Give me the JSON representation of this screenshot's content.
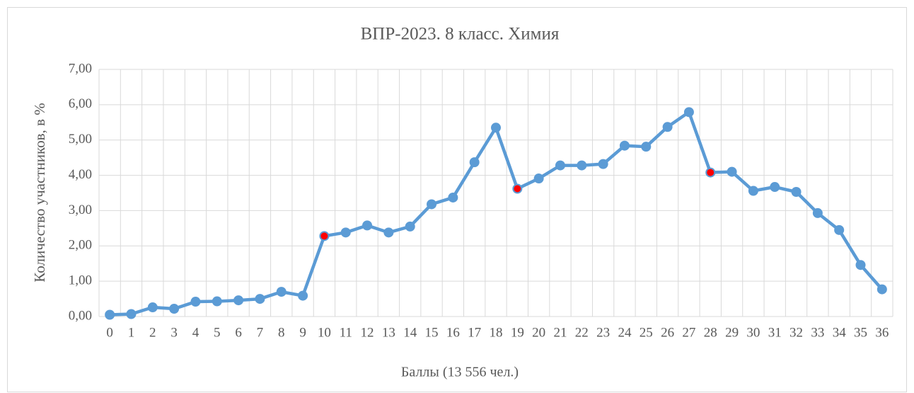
{
  "chart_data": {
    "type": "line",
    "title": "ВПР-2023. 8 класс. Химия",
    "x_label": "Баллы (13 556 чел.)",
    "y_label": "Количество участников, в %",
    "categories": [
      "0",
      "1",
      "2",
      "3",
      "4",
      "5",
      "6",
      "7",
      "8",
      "9",
      "10",
      "11",
      "12",
      "13",
      "14",
      "15",
      "16",
      "17",
      "18",
      "19",
      "20",
      "21",
      "22",
      "23",
      "24",
      "25",
      "26",
      "27",
      "28",
      "29",
      "30",
      "31",
      "32",
      "33",
      "34",
      "35",
      "36"
    ],
    "series": [
      {
        "color": "#5b9bd5",
        "values": [
          0.05,
          0.07,
          0.26,
          0.22,
          0.42,
          0.43,
          0.46,
          0.5,
          0.7,
          0.59,
          2.28,
          2.38,
          2.58,
          2.38,
          2.55,
          3.18,
          3.37,
          4.37,
          5.35,
          3.62,
          3.91,
          4.28,
          4.28,
          4.32,
          4.84,
          4.81,
          5.37,
          5.79,
          4.08,
          4.1,
          3.56,
          3.67,
          3.53,
          2.93,
          2.45,
          1.46,
          0.77
        ]
      }
    ],
    "highlight_color": "#ff0000",
    "highlight_categories": [
      "10",
      "19",
      "28"
    ],
    "ylim": [
      0,
      7
    ],
    "yticks": [
      {
        "value": 0,
        "label": "0,00"
      },
      {
        "value": 1,
        "label": "1,00"
      },
      {
        "value": 2,
        "label": "2,00"
      },
      {
        "value": 3,
        "label": "3,00"
      },
      {
        "value": 4,
        "label": "4,00"
      },
      {
        "value": 5,
        "label": "5,00"
      },
      {
        "value": 6,
        "label": "6,00"
      },
      {
        "value": 7,
        "label": "7,00"
      }
    ],
    "grid": true
  }
}
